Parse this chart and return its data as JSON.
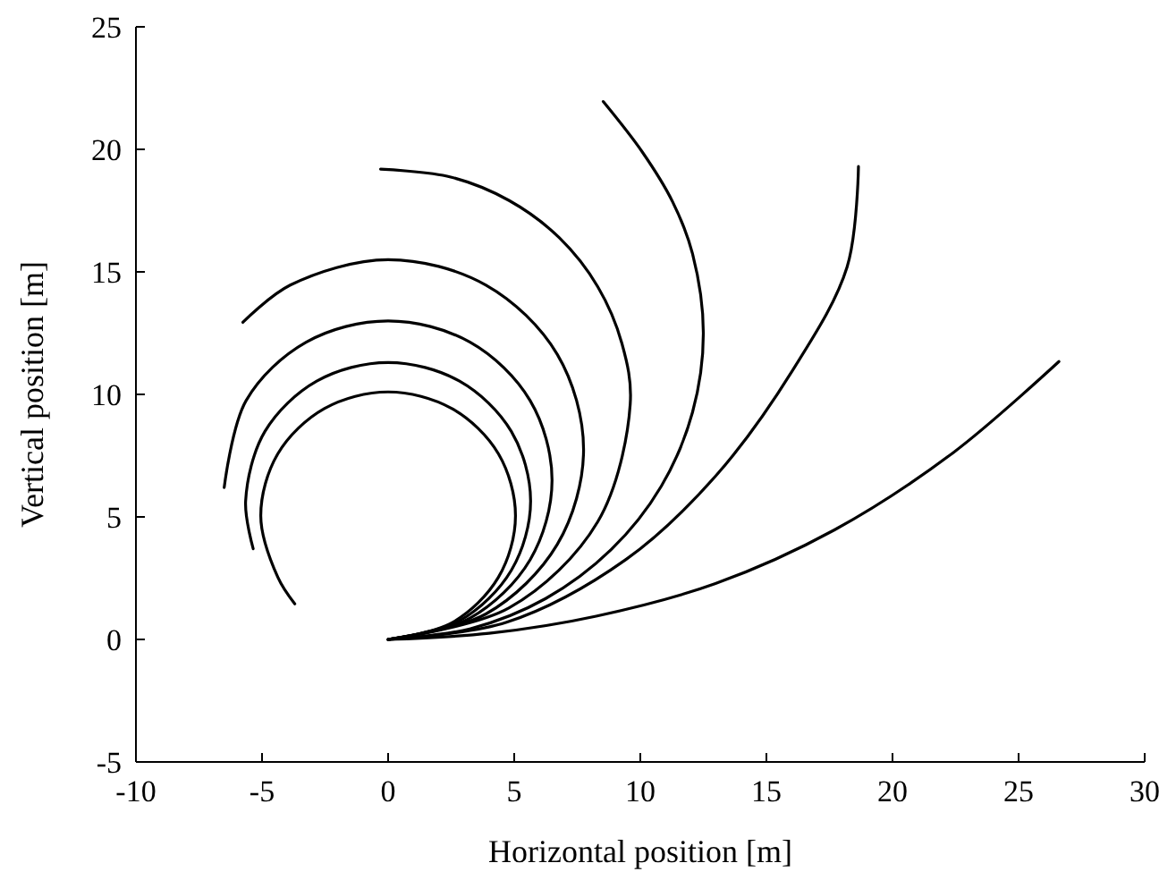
{
  "chart_data": {
    "type": "line",
    "xlabel": "Horizontal position [m]",
    "ylabel": "Vertical position [m]",
    "xlim": [
      -10,
      30
    ],
    "ylim": [
      -5,
      25
    ],
    "xticks": [
      -10,
      -5,
      0,
      5,
      10,
      15,
      20,
      25,
      30
    ],
    "yticks": [
      -5,
      0,
      5,
      10,
      15,
      20,
      25
    ],
    "grid": false,
    "marker": "none",
    "line_style": "solid",
    "series": [
      {
        "color": "#000000",
        "x": [
          0,
          2.53,
          4.37,
          5.05,
          4.37,
          2.53,
          0,
          -2.53,
          -4.37,
          -5.05,
          -4.37,
          -3.7
        ],
        "values": [
          0,
          0.68,
          2.53,
          5.05,
          7.58,
          9.42,
          10.1,
          9.42,
          7.58,
          5.05,
          2.53,
          1.45
        ]
      },
      {
        "color": "#000000",
        "x": [
          0,
          2.83,
          4.89,
          5.65,
          4.89,
          2.83,
          0,
          -2.83,
          -4.89,
          -5.65,
          -5.35
        ],
        "values": [
          0,
          0.76,
          2.83,
          5.65,
          8.48,
          10.54,
          11.3,
          10.54,
          8.48,
          5.65,
          3.7
        ]
      },
      {
        "color": "#000000",
        "x": [
          0,
          3.25,
          5.63,
          6.5,
          5.63,
          3.25,
          0,
          -3.25,
          -5.63,
          -6.5
        ],
        "values": [
          0,
          0.87,
          3.25,
          6.5,
          9.75,
          12.13,
          13,
          12.13,
          9.75,
          6.2
        ]
      },
      {
        "color": "#000000",
        "x": [
          0,
          3.88,
          6.71,
          7.75,
          6.71,
          3.88,
          0,
          -3.88,
          -5.76
        ],
        "values": [
          0,
          1.04,
          3.88,
          7.75,
          11.63,
          14.46,
          15.5,
          14.46,
          12.94
        ]
      },
      {
        "color": "#000000",
        "x": [
          0,
          4.8,
          8.31,
          9.6,
          9.27,
          8.31,
          6.79,
          4.8,
          2.48,
          -0.3
        ],
        "values": [
          0,
          1.29,
          4.8,
          9.6,
          12.08,
          14.4,
          16.39,
          17.91,
          18.87,
          19.19
        ]
      },
      {
        "color": "#000000",
        "x": [
          0,
          3.24,
          6.25,
          8.84,
          10.83,
          12.07,
          12.5,
          12.07,
          11.28,
          10.08,
          8.53
        ],
        "values": [
          0,
          0.43,
          1.67,
          3.66,
          6.25,
          9.27,
          12.5,
          15.74,
          17.86,
          19.89,
          21.95
        ]
      },
      {
        "color": "#000000",
        "x": [
          0,
          4.7,
          9.43,
          12.98,
          16.05,
          18.2,
          18.65
        ],
        "values": [
          0,
          0.7,
          3.26,
          6.66,
          11,
          15.2,
          19.3
        ]
      },
      {
        "color": "#000000",
        "x": [
          0,
          4,
          8.25,
          12.98,
          17.7,
          22.43,
          26.6
        ],
        "values": [
          0,
          0.25,
          0.95,
          2.28,
          4.47,
          7.64,
          11.34
        ]
      }
    ]
  }
}
